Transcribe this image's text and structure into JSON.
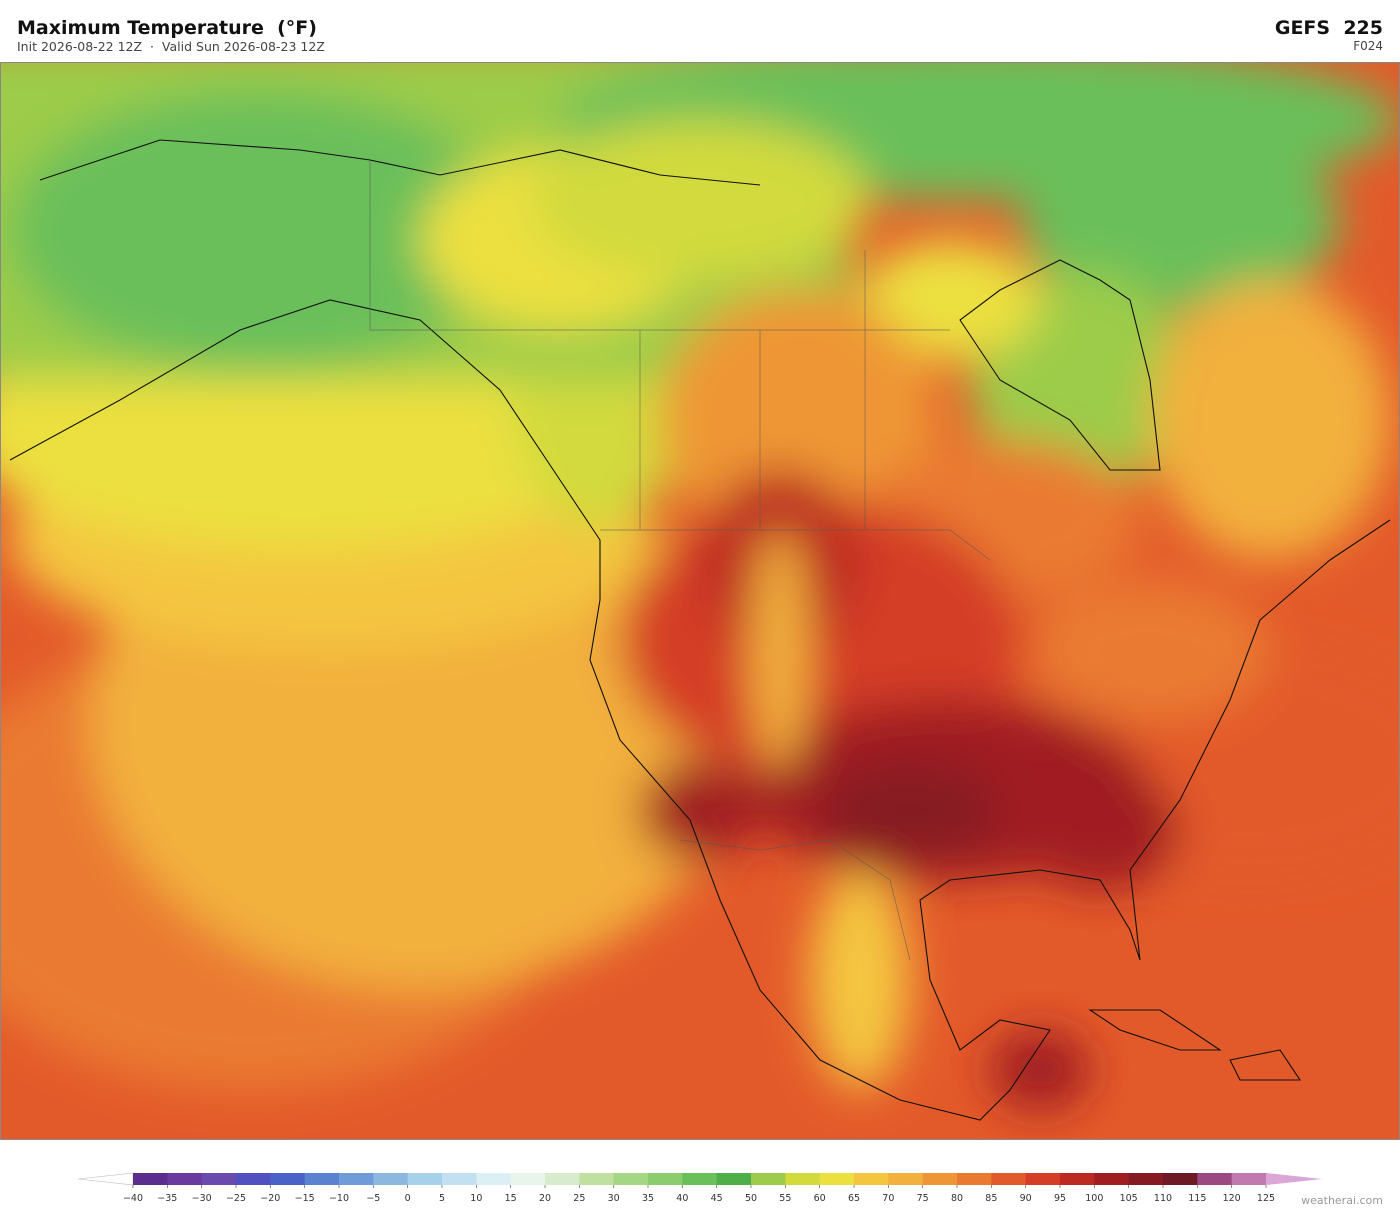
{
  "header": {
    "title": "Maximum Temperature  (°F)",
    "subtitle": "Init 2026-08-22 12Z  ·  Valid Sun 2026-08-23 12Z",
    "model": "GEFS  225",
    "forecast_hour": "F024"
  },
  "colorbar": {
    "ticks": [
      "−40",
      "−35",
      "−30",
      "−25",
      "−20",
      "−15",
      "−10",
      "−5",
      "0",
      "5",
      "10",
      "15",
      "20",
      "25",
      "30",
      "35",
      "40",
      "45",
      "50",
      "55",
      "60",
      "65",
      "70",
      "75",
      "80",
      "85",
      "90",
      "95",
      "100",
      "105",
      "110",
      "115",
      "120",
      "125"
    ],
    "colors": [
      "#5b2d8e",
      "#6a3a9e",
      "#6b4aad",
      "#5050c0",
      "#4a62c8",
      "#5a82d0",
      "#6f9bd8",
      "#8cb8e0",
      "#a7d0ea",
      "#c2e0f0",
      "#dceff5",
      "#e8f5ea",
      "#d6eccd",
      "#bfe0a0",
      "#a5d683",
      "#8bcc6e",
      "#6abf5a",
      "#4fae4a",
      "#9ccc4a",
      "#d2da3c",
      "#ece040",
      "#f4c640",
      "#f2b03c",
      "#ee9636",
      "#ea7a30",
      "#e35a2a",
      "#d43e26",
      "#bc2a22",
      "#a01e20",
      "#861a22",
      "#6e1a26",
      "#9a4a80",
      "#c07ab0"
    ],
    "under_color": "#ffffff",
    "over_color": "#d9a6d6"
  },
  "watermark": "weatherai.com"
}
